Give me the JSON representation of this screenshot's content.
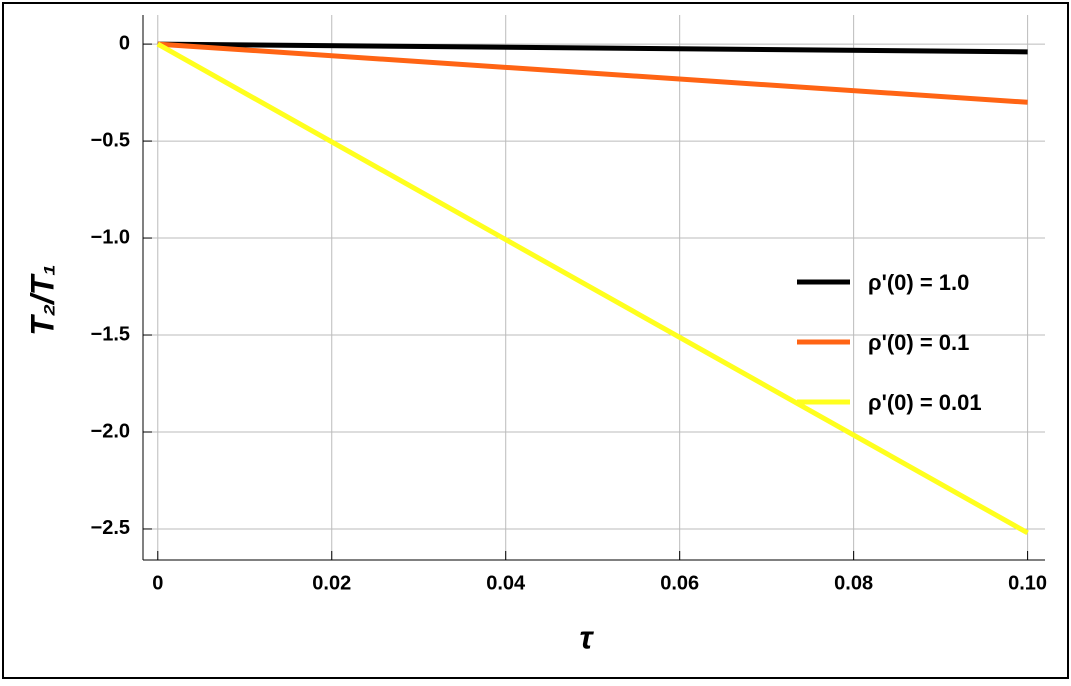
{
  "chart_data": {
    "type": "line",
    "x_label": "τ",
    "y_label": "T₂/T₁",
    "x": [
      0,
      0.1
    ],
    "series": [
      {
        "name": "ρ'(0) = 1.0",
        "color": "#000000",
        "values": [
          0,
          -0.04
        ]
      },
      {
        "name": "ρ'(0) = 0.1",
        "color": "#ff6414",
        "values": [
          0,
          -0.3
        ]
      },
      {
        "name": "ρ'(0) = 0.01",
        "color": "#ffff1e",
        "values": [
          0,
          -2.52
        ]
      }
    ],
    "xlim": [
      -0.0017,
      0.102
    ],
    "ylim": [
      -2.66,
      0.15
    ],
    "xticks": [
      0,
      0.02,
      0.04,
      0.06,
      0.08,
      {
        "value": 0.1,
        "label": "0.10"
      }
    ],
    "yticks": [
      0,
      {
        "value": -0.5,
        "label": "−0.5"
      },
      {
        "value": -1,
        "label": "−1.0"
      },
      {
        "value": -1.5,
        "label": "−1.5"
      },
      {
        "value": -2,
        "label": "−2.0"
      },
      {
        "value": -2.5,
        "label": "−2.5"
      }
    ],
    "grid": true
  }
}
